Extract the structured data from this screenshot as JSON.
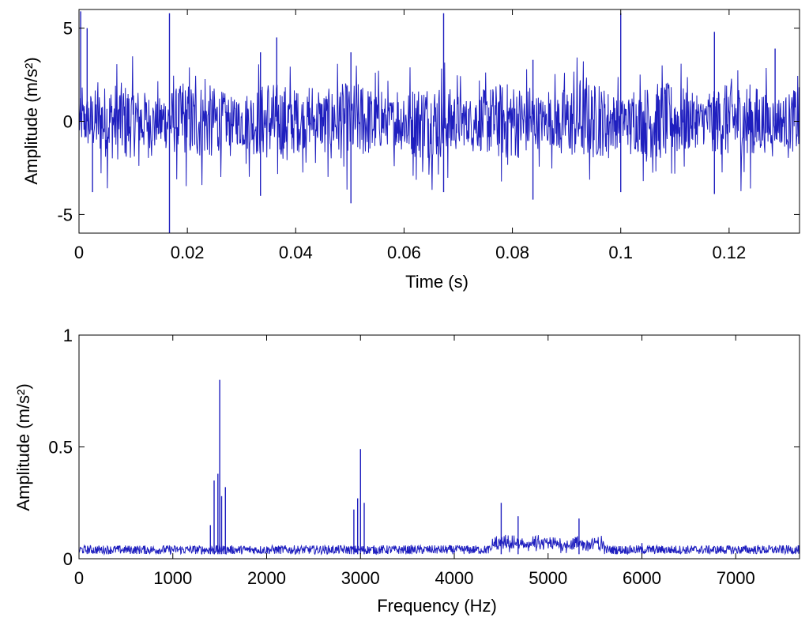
{
  "chart_data": [
    {
      "type": "line",
      "title": "",
      "xlabel": "Time (s)",
      "ylabel": "Amplitude (m/s²)",
      "xlim": [
        0,
        0.133
      ],
      "ylim": [
        -6,
        6
      ],
      "xticks": [
        0,
        0.02,
        0.04,
        0.06,
        0.08,
        0.1,
        0.12
      ],
      "xtick_labels": [
        "0",
        "0.02",
        "0.04",
        "0.06",
        "0.08",
        "0.1",
        "0.12"
      ],
      "yticks": [
        -5,
        0,
        5
      ],
      "ytick_labels": [
        "-5",
        "0",
        "5"
      ],
      "grid": false,
      "line_color": "#1f1fbf",
      "series": [
        {
          "values": [
            {
              "x": 0.0003,
              "y": 5.9
            },
            {
              "x": 0.0015,
              "y": 5.0
            },
            {
              "x": 0.0025,
              "y": -3.8
            },
            {
              "x": 0.0167,
              "y": 5.8
            },
            {
              "x": 0.0167,
              "y": -6.0
            },
            {
              "x": 0.0335,
              "y": 3.7
            },
            {
              "x": 0.0335,
              "y": -4.0
            },
            {
              "x": 0.0365,
              "y": 4.5
            },
            {
              "x": 0.0502,
              "y": 3.7
            },
            {
              "x": 0.0502,
              "y": -4.4
            },
            {
              "x": 0.0673,
              "y": 5.8
            },
            {
              "x": 0.0673,
              "y": -3.8
            },
            {
              "x": 0.0838,
              "y": 3.3
            },
            {
              "x": 0.0838,
              "y": -4.2
            },
            {
              "x": 0.1,
              "y": 5.8
            },
            {
              "x": 0.1,
              "y": -3.8
            },
            {
              "x": 0.1173,
              "y": 4.8
            },
            {
              "x": 0.1173,
              "y": -3.9
            },
            {
              "x": 0.1285,
              "y": 3.9
            }
          ]
        }
      ]
    },
    {
      "type": "line",
      "title": "",
      "xlabel": "Frequency (Hz)",
      "ylabel": "Amplitude (m/s²)",
      "xlim": [
        0,
        7680
      ],
      "ylim": [
        0,
        1
      ],
      "xticks": [
        0,
        1000,
        2000,
        3000,
        4000,
        5000,
        6000,
        7000
      ],
      "xtick_labels": [
        "0",
        "1000",
        "2000",
        "3000",
        "4000",
        "5000",
        "6000",
        "7000"
      ],
      "yticks": [
        0,
        0.5,
        1
      ],
      "ytick_labels": [
        "0",
        "0.5",
        "1"
      ],
      "grid": false,
      "line_color": "#1f1fbf",
      "series": [
        {
          "values": [
            {
              "x": 1400,
              "y": 0.15
            },
            {
              "x": 1440,
              "y": 0.35
            },
            {
              "x": 1480,
              "y": 0.38
            },
            {
              "x": 1500,
              "y": 0.8
            },
            {
              "x": 1520,
              "y": 0.28
            },
            {
              "x": 1560,
              "y": 0.32
            },
            {
              "x": 2930,
              "y": 0.22
            },
            {
              "x": 2970,
              "y": 0.27
            },
            {
              "x": 3000,
              "y": 0.49
            },
            {
              "x": 3040,
              "y": 0.25
            },
            {
              "x": 4500,
              "y": 0.25
            },
            {
              "x": 4680,
              "y": 0.19
            },
            {
              "x": 5330,
              "y": 0.18
            },
            {
              "x": 6000,
              "y": 0.07
            }
          ]
        }
      ]
    }
  ]
}
